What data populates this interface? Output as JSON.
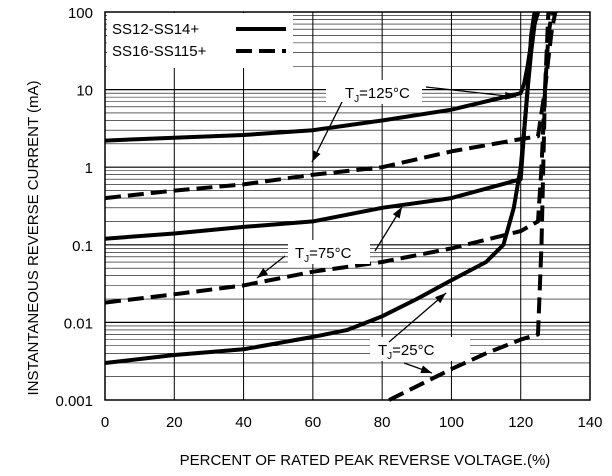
{
  "chart_data": {
    "type": "line",
    "xlabel": "PERCENT OF RATED PEAK REVERSE VOLTAGE.(%)",
    "ylabel": "INSTANTANEOUS REVERSE CURRENT (mA)",
    "xlim": [
      0,
      140
    ],
    "ylim": [
      0.001,
      100
    ],
    "y_scale": "log",
    "grid": true,
    "legend_position": "top-left",
    "x_ticks": [
      "0",
      "20",
      "40",
      "60",
      "80",
      "100",
      "120",
      "140"
    ],
    "y_ticks": [
      "0.001",
      "0.01",
      "0.1",
      "1",
      "10",
      "100"
    ],
    "series": [
      {
        "name": "SS12-SS14+",
        "style": "solid",
        "condition": "TJ=125°C",
        "x": [
          0,
          20,
          40,
          60,
          80,
          100,
          120,
          121,
          122,
          123,
          124,
          125
        ],
        "y": [
          2.2,
          2.4,
          2.6,
          3.0,
          4.0,
          5.5,
          9.0,
          12,
          20,
          40,
          70,
          100
        ]
      },
      {
        "name": "SS12-SS14+",
        "style": "solid",
        "condition": "TJ=75°C",
        "x": [
          0,
          20,
          40,
          60,
          80,
          100,
          120,
          121,
          122,
          123,
          124,
          125
        ],
        "y": [
          0.12,
          0.14,
          0.17,
          0.2,
          0.3,
          0.4,
          0.7,
          3,
          10,
          30,
          70,
          100
        ]
      },
      {
        "name": "SS12-SS14+",
        "style": "solid",
        "condition": "TJ=25°C",
        "x": [
          0,
          20,
          40,
          60,
          70,
          80,
          90,
          100,
          110,
          115,
          118,
          120,
          121,
          122,
          123,
          124
        ],
        "y": [
          0.003,
          0.0038,
          0.0045,
          0.0065,
          0.008,
          0.012,
          0.02,
          0.035,
          0.06,
          0.1,
          0.3,
          1,
          3,
          10,
          50,
          100
        ]
      },
      {
        "name": "SS16-SS115+",
        "style": "dashed",
        "condition": "TJ=125°C",
        "x": [
          0,
          20,
          40,
          60,
          80,
          100,
          120,
          125,
          126,
          127,
          128,
          129,
          130
        ],
        "y": [
          0.4,
          0.5,
          0.6,
          0.8,
          1.0,
          1.6,
          2.3,
          2.5,
          5,
          10,
          25,
          60,
          100
        ]
      },
      {
        "name": "SS16-SS115+",
        "style": "dashed",
        "condition": "TJ=75°C",
        "x": [
          0,
          20,
          40,
          60,
          80,
          100,
          120,
          125,
          126,
          127,
          128
        ],
        "y": [
          0.018,
          0.023,
          0.03,
          0.045,
          0.06,
          0.09,
          0.15,
          0.2,
          1,
          10,
          100
        ]
      },
      {
        "name": "SS16-SS115+",
        "style": "dashed",
        "condition": "TJ=25°C",
        "x": [
          82,
          90,
          100,
          110,
          120,
          125,
          126,
          127,
          128,
          129
        ],
        "y": [
          0.001,
          0.0015,
          0.0025,
          0.004,
          0.006,
          0.007,
          0.1,
          10,
          50,
          100
        ]
      }
    ],
    "annotations": [
      {
        "main": "T",
        "sub": "J",
        "rest": "=125°C"
      },
      {
        "main": "T",
        "sub": "J",
        "rest": "=75°C"
      },
      {
        "main": "T",
        "sub": "J",
        "rest": "=25°C"
      }
    ]
  }
}
